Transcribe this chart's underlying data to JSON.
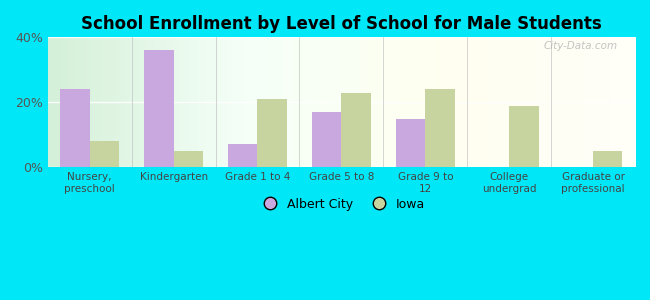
{
  "title": "School Enrollment by Level of School for Male Students",
  "categories": [
    "Nursery,\npreschool",
    "Kindergarten",
    "Grade 1 to 4",
    "Grade 5 to 8",
    "Grade 9 to\n12",
    "College\nundergrad",
    "Graduate or\nprofessional"
  ],
  "albert_city": [
    24,
    36,
    7,
    17,
    15,
    0,
    0
  ],
  "iowa": [
    8,
    5,
    21,
    23,
    24,
    19,
    5
  ],
  "albert_city_color": "#c9a8e0",
  "iowa_color": "#c8d4a0",
  "background_outer": "#00e8f8",
  "ylim": [
    0,
    40
  ],
  "yticks": [
    0,
    20,
    40
  ],
  "ytick_labels": [
    "0%",
    "20%",
    "40%"
  ],
  "bar_width": 0.35,
  "legend_labels": [
    "Albert City",
    "Iowa"
  ],
  "watermark": "City-Data.com"
}
